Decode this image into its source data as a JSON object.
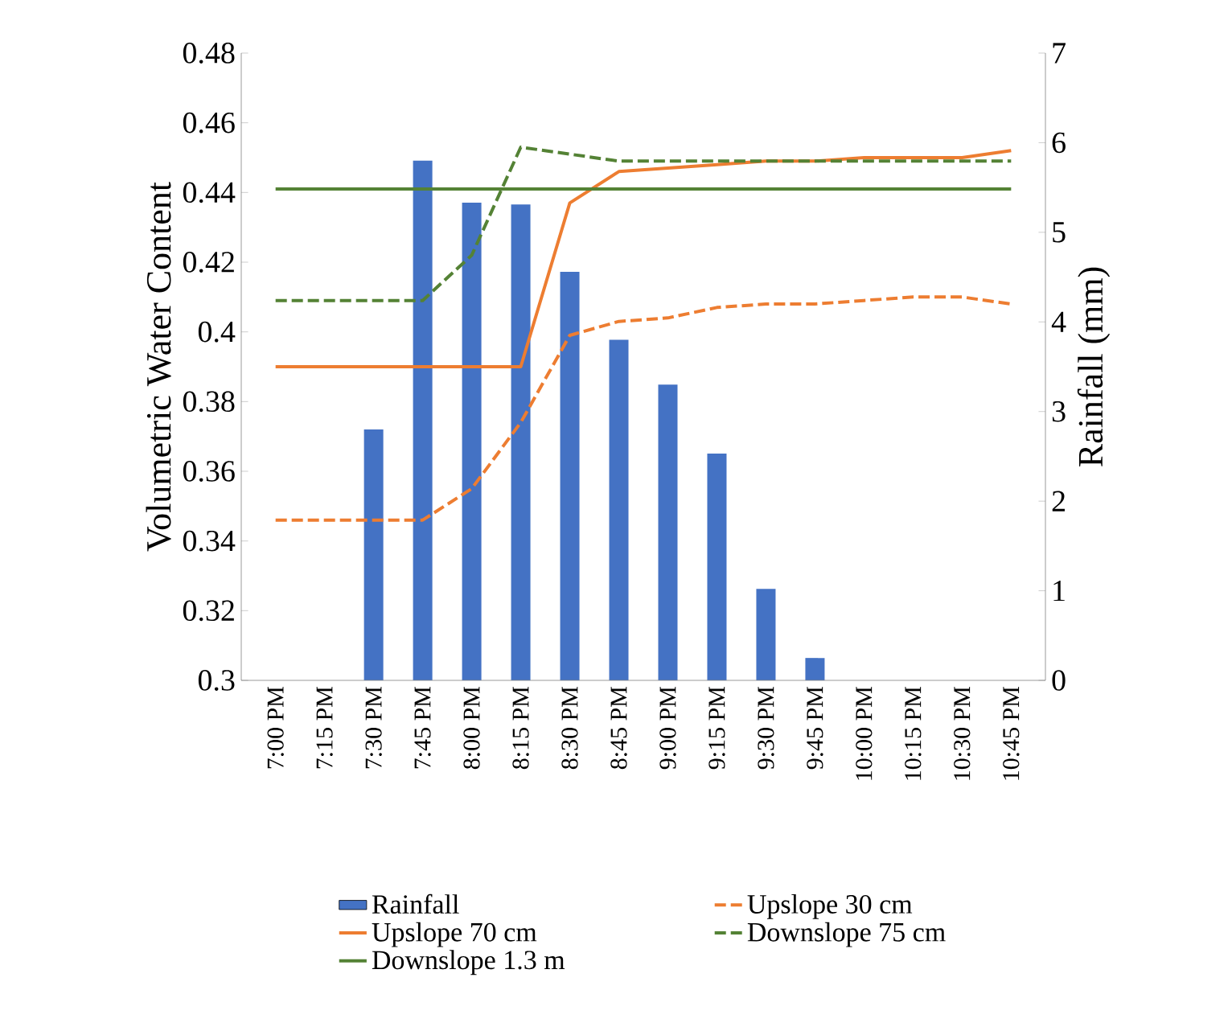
{
  "chart_data": {
    "type": "line",
    "ylabel": "Volumetric Water Content",
    "y2label": "Rainfall (mm)",
    "categories": [
      "7:00 PM",
      "7:15 PM",
      "7:30 PM",
      "7:45 PM",
      "8:00 PM",
      "8:15 PM",
      "8:30 PM",
      "8:45 PM",
      "9:00 PM",
      "9:15 PM",
      "9:30 PM",
      "9:45 PM",
      "10:00 PM",
      "10:15 PM",
      "10:30 PM",
      "10:45 PM"
    ],
    "series": [
      {
        "name": "Rainfall",
        "type": "bar",
        "axis": "y2",
        "color": "#4472c4",
        "values": [
          0,
          0,
          2.8,
          5.8,
          5.33,
          5.31,
          4.56,
          3.8,
          3.3,
          2.53,
          1.02,
          0.25,
          0,
          0,
          0,
          0
        ]
      },
      {
        "name": "Upslope 30 cm",
        "color": "#ed7d31",
        "line_style": "dashed",
        "values": [
          0.346,
          0.346,
          0.346,
          0.346,
          0.355,
          0.374,
          0.399,
          0.403,
          0.404,
          0.407,
          0.408,
          0.408,
          0.409,
          0.41,
          0.41,
          0.408
        ]
      },
      {
        "name": "Upslope 70 cm",
        "color": "#ed7d31",
        "line_style": "solid",
        "values": [
          0.39,
          0.39,
          0.39,
          0.39,
          0.39,
          0.39,
          0.437,
          0.446,
          0.447,
          0.448,
          0.449,
          0.449,
          0.45,
          0.45,
          0.45,
          0.452
        ]
      },
      {
        "name": "Downslope 75 cm",
        "color": "#548235",
        "line_style": "dashed",
        "values": [
          0.409,
          0.409,
          0.409,
          0.409,
          0.422,
          0.453,
          0.451,
          0.449,
          0.449,
          0.449,
          0.449,
          0.449,
          0.449,
          0.449,
          0.449,
          0.449
        ]
      },
      {
        "name": "Downslope 1.3 m",
        "color": "#548235",
        "line_style": "solid",
        "values": [
          0.441,
          0.441,
          0.441,
          0.441,
          0.441,
          0.441,
          0.441,
          0.441,
          0.441,
          0.441,
          0.441,
          0.441,
          0.441,
          0.441,
          0.441,
          0.441
        ]
      }
    ],
    "ylim": [
      0.3,
      0.48
    ],
    "yticks": [
      0.3,
      0.32,
      0.34,
      0.36,
      0.38,
      0.4,
      0.42,
      0.44,
      0.46,
      0.48
    ],
    "y2lim": [
      0,
      7
    ],
    "y2ticks": [
      0,
      1,
      2,
      3,
      4,
      5,
      6,
      7
    ],
    "legend": "bottom",
    "grid": false,
    "marker": "none"
  }
}
